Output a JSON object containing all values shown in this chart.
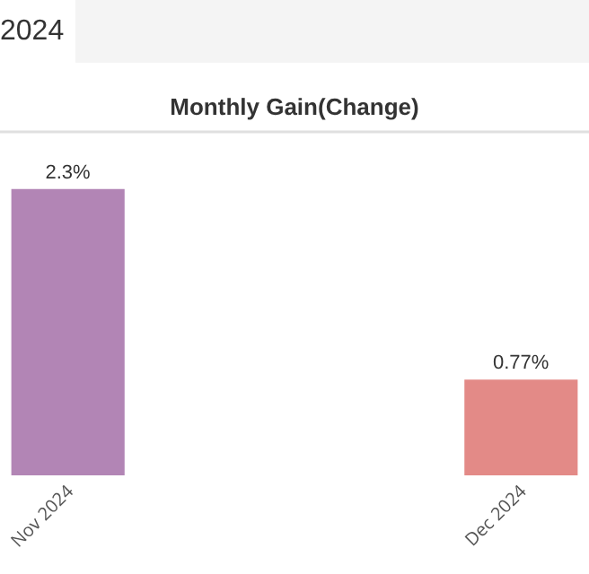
{
  "chart_data": {
    "type": "bar",
    "title": "Monthly Gain(Change)",
    "annotations": [
      "2024"
    ],
    "categories": [
      "Nov 2024",
      "Dec 2024"
    ],
    "values": [
      2.3,
      0.77
    ],
    "colors": [
      "#b285b5",
      "#e38a87"
    ],
    "value_labels": [
      "2.3%",
      "0.77%"
    ],
    "tick_labels": "x"
  }
}
